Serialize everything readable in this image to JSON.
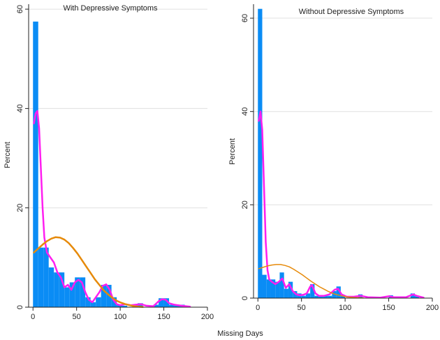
{
  "figure": {
    "shared_xlabel": "Missing Days"
  },
  "colors": {
    "bar": "#0a8cf5",
    "kernel_density": "#ff1ef0",
    "normal_density": "#e68a0a",
    "grid": "#e0e0e0",
    "axis": "#222222"
  },
  "chart_data": [
    {
      "type": "bar",
      "title": "With Depressive Symptoms",
      "xlabel": "",
      "ylabel": "Percent",
      "xlim": [
        -5,
        200
      ],
      "ylim": [
        0,
        61
      ],
      "xticks": [
        "0",
        "50",
        "100",
        "150",
        "200"
      ],
      "yticks": [
        "0",
        "20",
        "40",
        "60"
      ],
      "grid": true,
      "bin_width": 6,
      "bars": [
        {
          "x0": 0,
          "value": 57.5
        },
        {
          "x0": 6,
          "value": 12
        },
        {
          "x0": 12,
          "value": 12
        },
        {
          "x0": 18,
          "value": 8
        },
        {
          "x0": 24,
          "value": 7
        },
        {
          "x0": 30,
          "value": 7
        },
        {
          "x0": 36,
          "value": 4
        },
        {
          "x0": 42,
          "value": 5
        },
        {
          "x0": 48,
          "value": 6
        },
        {
          "x0": 54,
          "value": 6
        },
        {
          "x0": 60,
          "value": 2
        },
        {
          "x0": 66,
          "value": 1
        },
        {
          "x0": 72,
          "value": 2
        },
        {
          "x0": 78,
          "value": 4.5
        },
        {
          "x0": 84,
          "value": 4.5
        },
        {
          "x0": 90,
          "value": 2
        },
        {
          "x0": 96,
          "value": 0.5
        },
        {
          "x0": 102,
          "value": 0.3
        },
        {
          "x0": 114,
          "value": 0.5
        },
        {
          "x0": 120,
          "value": 0.8
        },
        {
          "x0": 138,
          "value": 0.5
        },
        {
          "x0": 144,
          "value": 1.8
        },
        {
          "x0": 150,
          "value": 1.8
        },
        {
          "x0": 156,
          "value": 0.5
        },
        {
          "x0": 162,
          "value": 0.5
        },
        {
          "x0": 168,
          "value": 0.5
        }
      ],
      "series": [
        {
          "name": "",
          "kind": "kernel_density",
          "points": [
            [
              1,
              37
            ],
            [
              3,
              39
            ],
            [
              5,
              39.5
            ],
            [
              7,
              36
            ],
            [
              9,
              28
            ],
            [
              11,
              20
            ],
            [
              13,
              14
            ],
            [
              16,
              11
            ],
            [
              20,
              10
            ],
            [
              24,
              9
            ],
            [
              28,
              7
            ],
            [
              32,
              6
            ],
            [
              36,
              4
            ],
            [
              40,
              4.5
            ],
            [
              44,
              3.5
            ],
            [
              48,
              5
            ],
            [
              52,
              5.5
            ],
            [
              56,
              5
            ],
            [
              60,
              3
            ],
            [
              64,
              1.5
            ],
            [
              68,
              1
            ],
            [
              72,
              2
            ],
            [
              76,
              3
            ],
            [
              80,
              4.3
            ],
            [
              84,
              4.6
            ],
            [
              88,
              3.5
            ],
            [
              92,
              1.5
            ],
            [
              96,
              0.6
            ],
            [
              100,
              0.4
            ],
            [
              106,
              0.6
            ],
            [
              112,
              0.4
            ],
            [
              118,
              0.5
            ],
            [
              124,
              0.6
            ],
            [
              130,
              0.3
            ],
            [
              138,
              0.2
            ],
            [
              144,
              1.2
            ],
            [
              148,
              1.6
            ],
            [
              152,
              1.5
            ],
            [
              156,
              0.8
            ],
            [
              162,
              0.5
            ],
            [
              170,
              0.3
            ],
            [
              180,
              0.1
            ]
          ]
        },
        {
          "name": "",
          "kind": "normal_density",
          "points": [
            [
              1,
              11
            ],
            [
              6,
              11.8
            ],
            [
              11,
              12.6
            ],
            [
              16,
              13.3
            ],
            [
              21,
              13.8
            ],
            [
              26,
              14.1
            ],
            [
              31,
              14
            ],
            [
              36,
              13.6
            ],
            [
              41,
              12.9
            ],
            [
              46,
              11.9
            ],
            [
              51,
              10.8
            ],
            [
              56,
              9.5
            ],
            [
              61,
              8.2
            ],
            [
              66,
              6.9
            ],
            [
              71,
              5.6
            ],
            [
              76,
              4.5
            ],
            [
              81,
              3.4
            ],
            [
              86,
              2.6
            ],
            [
              91,
              1.9
            ],
            [
              96,
              1.3
            ],
            [
              101,
              0.9
            ],
            [
              106,
              0.6
            ],
            [
              111,
              0.4
            ],
            [
              116,
              0.2
            ],
            [
              121,
              0.1
            ],
            [
              126,
              0.05
            ]
          ]
        }
      ]
    },
    {
      "type": "bar",
      "title": "Without Depressive Symptoms",
      "xlabel": "",
      "ylabel": "Percent",
      "xlim": [
        -5,
        200
      ],
      "ylim": [
        0,
        63
      ],
      "xticks": [
        "0",
        "50",
        "100",
        "150",
        "200"
      ],
      "yticks": [
        "0",
        "20",
        "40",
        "60"
      ],
      "grid": true,
      "bin_width": 5,
      "bars": [
        {
          "x0": 0,
          "value": 62
        },
        {
          "x0": 5,
          "value": 5
        },
        {
          "x0": 10,
          "value": 4
        },
        {
          "x0": 15,
          "value": 4
        },
        {
          "x0": 20,
          "value": 3.5
        },
        {
          "x0": 25,
          "value": 5.5
        },
        {
          "x0": 30,
          "value": 2
        },
        {
          "x0": 35,
          "value": 3.5
        },
        {
          "x0": 40,
          "value": 1.5
        },
        {
          "x0": 45,
          "value": 1
        },
        {
          "x0": 50,
          "value": 0.5
        },
        {
          "x0": 55,
          "value": 1
        },
        {
          "x0": 60,
          "value": 3
        },
        {
          "x0": 65,
          "value": 0.5
        },
        {
          "x0": 70,
          "value": 0.5
        },
        {
          "x0": 75,
          "value": 0.5
        },
        {
          "x0": 80,
          "value": 0.5
        },
        {
          "x0": 85,
          "value": 1.5
        },
        {
          "x0": 90,
          "value": 2.5
        },
        {
          "x0": 95,
          "value": 0.5
        },
        {
          "x0": 115,
          "value": 0.8
        },
        {
          "x0": 130,
          "value": 0.3
        },
        {
          "x0": 150,
          "value": 0.6
        },
        {
          "x0": 175,
          "value": 1
        },
        {
          "x0": 180,
          "value": 0.5
        }
      ],
      "series": [
        {
          "name": "",
          "kind": "kernel_density",
          "points": [
            [
              1,
              38
            ],
            [
              3,
              40
            ],
            [
              5,
              36
            ],
            [
              7,
              24
            ],
            [
              9,
              12
            ],
            [
              11,
              6
            ],
            [
              13,
              4
            ],
            [
              16,
              3.5
            ],
            [
              20,
              3
            ],
            [
              24,
              3.5
            ],
            [
              28,
              4.2
            ],
            [
              32,
              2.2
            ],
            [
              36,
              3
            ],
            [
              40,
              1.5
            ],
            [
              44,
              0.8
            ],
            [
              48,
              0.6
            ],
            [
              52,
              0.7
            ],
            [
              56,
              1
            ],
            [
              60,
              2.5
            ],
            [
              62,
              2.8
            ],
            [
              66,
              1
            ],
            [
              70,
              0.5
            ],
            [
              76,
              0.5
            ],
            [
              82,
              0.8
            ],
            [
              88,
              1.8
            ],
            [
              92,
              2
            ],
            [
              96,
              0.8
            ],
            [
              102,
              0.3
            ],
            [
              110,
              0.3
            ],
            [
              118,
              0.5
            ],
            [
              126,
              0.2
            ],
            [
              140,
              0.1
            ],
            [
              150,
              0.4
            ],
            [
              156,
              0.2
            ],
            [
              170,
              0.2
            ],
            [
              178,
              0.8
            ],
            [
              182,
              0.5
            ],
            [
              190,
              0.1
            ]
          ]
        },
        {
          "name": "",
          "kind": "normal_density",
          "points": [
            [
              1,
              6.3
            ],
            [
              6,
              6.6
            ],
            [
              11,
              6.9
            ],
            [
              16,
              7.1
            ],
            [
              21,
              7.2
            ],
            [
              26,
              7.2
            ],
            [
              31,
              7
            ],
            [
              36,
              6.7
            ],
            [
              41,
              6.2
            ],
            [
              46,
              5.6
            ],
            [
              51,
              5
            ],
            [
              56,
              4.3
            ],
            [
              61,
              3.6
            ],
            [
              66,
              3
            ],
            [
              71,
              2.4
            ],
            [
              76,
              1.9
            ],
            [
              81,
              1.4
            ],
            [
              86,
              1
            ],
            [
              91,
              0.7
            ],
            [
              96,
              0.5
            ],
            [
              101,
              0.3
            ],
            [
              106,
              0.2
            ],
            [
              111,
              0.1
            ],
            [
              121,
              0.05
            ]
          ]
        }
      ]
    }
  ]
}
